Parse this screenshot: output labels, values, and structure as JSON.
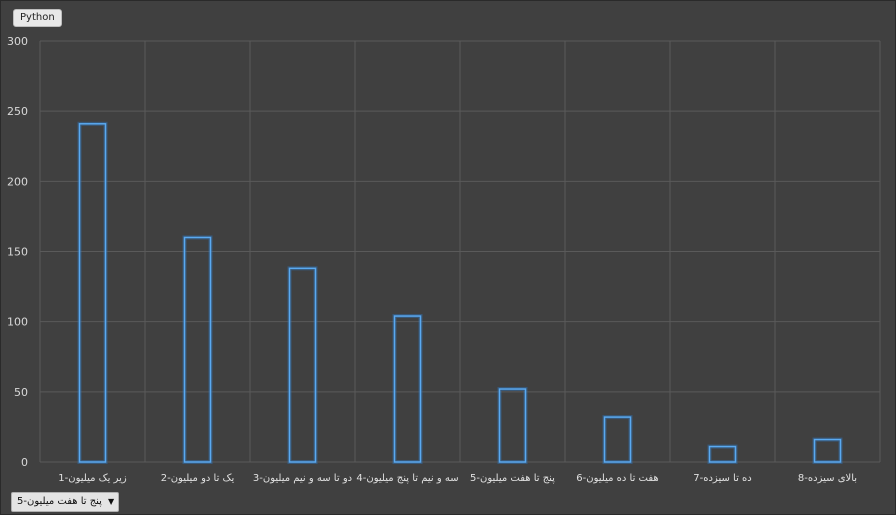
{
  "tag_label": "Python",
  "filter": {
    "selected": "5-پنج تا هفت میلیون"
  },
  "colors": {
    "background": "#404040",
    "grid": "#5a5a5a",
    "bar_stroke": "#5aa9f0"
  },
  "chart_data": {
    "type": "bar",
    "categories": [
      "1-زیر یک میلیون",
      "2-یک تا دو میلیون",
      "3-دو تا سه و نیم میلیون",
      "4-سه و نیم تا پنج میلیون",
      "5-پنج تا هفت میلیون",
      "6-هفت تا ده میلیون",
      "7-ده تا سیزده",
      "8-بالای سیزده"
    ],
    "values": [
      241,
      160,
      138,
      104,
      52,
      32,
      11,
      16
    ],
    "ylim": [
      0,
      300
    ],
    "yticks": [
      0,
      50,
      100,
      150,
      200,
      250,
      300
    ],
    "grid": true,
    "legend": "none"
  }
}
